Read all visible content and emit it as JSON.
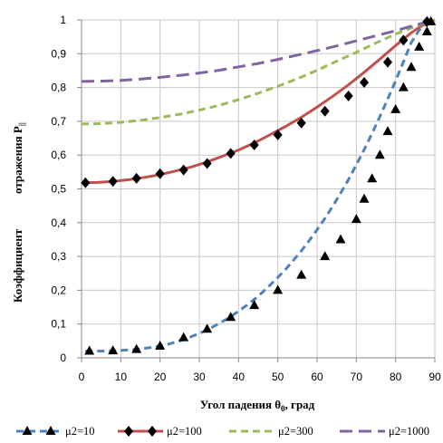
{
  "chart_data": {
    "type": "line",
    "title": "",
    "xlabel": "Угол падения θ",
    "xlabel_sub": "0",
    "xlabel_tail": ", град",
    "ylabel_part1": "Коэффициент",
    "ylabel_part2": "отражения P",
    "ylabel_sub": "||",
    "xlim": [
      0,
      90
    ],
    "ylim": [
      0,
      1
    ],
    "x_ticks": [
      "0",
      "10",
      "20",
      "30",
      "40",
      "50",
      "60",
      "70",
      "80",
      "90"
    ],
    "y_ticks": [
      "0",
      "0,1",
      "0,2",
      "0,3",
      "0,4",
      "0,5",
      "0,6",
      "0,7",
      "0,8",
      "0,9",
      "1"
    ],
    "grid": true,
    "legend_position": "bottom",
    "series": [
      {
        "name": "μ2=10",
        "color": "#4f81bd",
        "dash": "dashed",
        "marker": "triangle",
        "x": [
          1,
          2,
          4,
          6,
          8,
          10,
          12,
          14,
          16,
          18,
          20,
          22,
          24,
          26,
          28,
          30,
          32,
          34,
          36,
          38,
          40,
          42,
          44,
          46,
          48,
          50,
          52,
          54,
          56,
          58,
          60,
          62,
          64,
          66,
          68,
          70,
          72,
          74,
          76,
          78,
          80,
          82,
          84,
          86,
          88,
          89,
          90
        ],
        "y": [
          0.02,
          0.02,
          0.02,
          0.02,
          0.021,
          0.022,
          0.023,
          0.025,
          0.028,
          0.031,
          0.035,
          0.04,
          0.047,
          0.054,
          0.063,
          0.072,
          0.083,
          0.095,
          0.108,
          0.122,
          0.138,
          0.155,
          0.173,
          0.193,
          0.215,
          0.238,
          0.262,
          0.289,
          0.317,
          0.347,
          0.379,
          0.413,
          0.449,
          0.487,
          0.528,
          0.571,
          0.616,
          0.664,
          0.714,
          0.766,
          0.82,
          0.876,
          0.933,
          0.97,
          0.99,
          0.995,
          1.0
        ],
        "marker_x": [
          2,
          8,
          14,
          20,
          26,
          32,
          38,
          44,
          50,
          56,
          62,
          66,
          70,
          72,
          74,
          76,
          78,
          80,
          82,
          84,
          86,
          88,
          89
        ],
        "marker_y": [
          0.02,
          0.021,
          0.025,
          0.035,
          0.06,
          0.085,
          0.12,
          0.155,
          0.2,
          0.245,
          0.3,
          0.35,
          0.41,
          0.47,
          0.53,
          0.6,
          0.67,
          0.735,
          0.8,
          0.86,
          0.92,
          0.965,
          0.995
        ]
      },
      {
        "name": "μ2=100",
        "color": "#c0504d",
        "dash": "solid",
        "marker": "diamond",
        "x": [
          1,
          4,
          8,
          12,
          16,
          20,
          24,
          28,
          32,
          36,
          40,
          44,
          48,
          52,
          56,
          60,
          64,
          68,
          72,
          76,
          80,
          84,
          86,
          88,
          90
        ],
        "y": [
          0.518,
          0.519,
          0.522,
          0.527,
          0.534,
          0.542,
          0.553,
          0.565,
          0.58,
          0.597,
          0.615,
          0.636,
          0.66,
          0.685,
          0.712,
          0.742,
          0.774,
          0.808,
          0.845,
          0.884,
          0.924,
          0.962,
          0.978,
          0.992,
          1.0
        ],
        "marker_x": [
          1,
          8,
          14,
          20,
          26,
          32,
          38,
          44,
          50,
          56,
          62,
          68,
          72,
          78,
          82,
          88
        ],
        "marker_y": [
          0.518,
          0.522,
          0.531,
          0.545,
          0.556,
          0.575,
          0.605,
          0.63,
          0.66,
          0.695,
          0.73,
          0.775,
          0.815,
          0.875,
          0.94,
          0.995
        ]
      },
      {
        "name": "μ2=300",
        "color": "#9bbb59",
        "dash": "dashed",
        "marker": "none",
        "x": [
          0,
          5,
          10,
          15,
          20,
          25,
          30,
          35,
          40,
          45,
          50,
          55,
          60,
          65,
          70,
          75,
          80,
          85,
          90
        ],
        "y": [
          0.692,
          0.693,
          0.697,
          0.703,
          0.711,
          0.721,
          0.733,
          0.747,
          0.764,
          0.783,
          0.804,
          0.826,
          0.851,
          0.878,
          0.904,
          0.932,
          0.958,
          0.981,
          1.0
        ]
      },
      {
        "name": "μ2=1000",
        "color": "#8064a2",
        "dash": "longdash",
        "marker": "none",
        "x": [
          0,
          5,
          10,
          15,
          20,
          25,
          30,
          35,
          40,
          45,
          50,
          55,
          60,
          65,
          70,
          75,
          80,
          85,
          90
        ],
        "y": [
          0.818,
          0.819,
          0.821,
          0.825,
          0.83,
          0.836,
          0.843,
          0.851,
          0.861,
          0.871,
          0.883,
          0.896,
          0.909,
          0.923,
          0.938,
          0.953,
          0.968,
          0.985,
          1.0
        ]
      }
    ]
  }
}
